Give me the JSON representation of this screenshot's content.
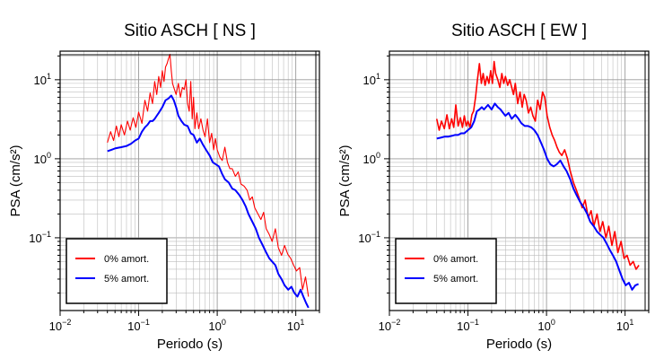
{
  "chart_data": [
    {
      "type": "line",
      "title": "Sitio ASCH [ NS ]",
      "xlabel": "Periodo (s)",
      "ylabel": "PSA (cm/s²)",
      "xscale": "log",
      "yscale": "log",
      "xlim": [
        0.01,
        20
      ],
      "ylim": [
        0.012,
        23
      ],
      "grid": true,
      "legend": "bottom-left",
      "xticks": [
        {
          "base": "10",
          "exp": "−2"
        },
        {
          "base": "10",
          "exp": "−1"
        },
        {
          "base": "10",
          "exp": "0"
        },
        {
          "base": "10",
          "exp": "1"
        }
      ],
      "yticks": [
        {
          "base": "10",
          "exp": "−1"
        },
        {
          "base": "10",
          "exp": "0"
        },
        {
          "base": "10",
          "exp": "1"
        }
      ],
      "series": [
        {
          "name": "0% amort.",
          "color": "#ff0000",
          "x": [
            0.04,
            0.044,
            0.048,
            0.052,
            0.056,
            0.06,
            0.066,
            0.072,
            0.078,
            0.085,
            0.092,
            0.1,
            0.11,
            0.12,
            0.13,
            0.14,
            0.15,
            0.16,
            0.17,
            0.18,
            0.19,
            0.2,
            0.21,
            0.22,
            0.23,
            0.24,
            0.25,
            0.26,
            0.27,
            0.28,
            0.3,
            0.32,
            0.34,
            0.36,
            0.38,
            0.4,
            0.42,
            0.44,
            0.46,
            0.48,
            0.5,
            0.52,
            0.55,
            0.58,
            0.62,
            0.66,
            0.7,
            0.75,
            0.8,
            0.85,
            0.9,
            0.95,
            1.0,
            1.08,
            1.16,
            1.25,
            1.35,
            1.45,
            1.55,
            1.7,
            1.85,
            2.0,
            2.2,
            2.4,
            2.6,
            2.8,
            3.0,
            3.3,
            3.6,
            3.9,
            4.2,
            4.6,
            5.0,
            5.5,
            6.0,
            6.6,
            7.2,
            7.9,
            8.6,
            9.4,
            10.2,
            11.2,
            12.2,
            13.3,
            14.5
          ],
          "y": [
            1.6,
            2.2,
            1.7,
            2.6,
            1.9,
            2.7,
            2.0,
            3.0,
            2.3,
            3.3,
            2.5,
            3.9,
            2.8,
            5.5,
            4.0,
            6.8,
            5.0,
            9.5,
            6.5,
            11.0,
            8.0,
            13.0,
            9.5,
            14.5,
            16.0,
            18.5,
            21.0,
            13.0,
            9.0,
            8.0,
            6.5,
            9.0,
            6.0,
            8.0,
            7.5,
            10.0,
            5.0,
            4.0,
            9.5,
            3.2,
            6.0,
            2.4,
            3.8,
            2.4,
            3.2,
            2.3,
            1.9,
            3.2,
            1.6,
            2.1,
            1.3,
            1.8,
            1.3,
            1.05,
            0.95,
            1.4,
            0.9,
            0.75,
            0.75,
            0.6,
            0.68,
            0.48,
            0.45,
            0.4,
            0.3,
            0.33,
            0.24,
            0.2,
            0.17,
            0.21,
            0.13,
            0.11,
            0.09,
            0.13,
            0.075,
            0.06,
            0.08,
            0.062,
            0.055,
            0.045,
            0.038,
            0.042,
            0.022,
            0.032,
            0.018
          ]
        },
        {
          "name": "5% amort.",
          "color": "#0000ff",
          "x": [
            0.04,
            0.045,
            0.05,
            0.055,
            0.06,
            0.07,
            0.08,
            0.09,
            0.1,
            0.11,
            0.12,
            0.13,
            0.14,
            0.15,
            0.16,
            0.17,
            0.18,
            0.2,
            0.22,
            0.24,
            0.26,
            0.28,
            0.3,
            0.32,
            0.35,
            0.38,
            0.42,
            0.46,
            0.5,
            0.55,
            0.6,
            0.66,
            0.72,
            0.8,
            0.88,
            0.96,
            1.05,
            1.15,
            1.25,
            1.4,
            1.55,
            1.7,
            1.9,
            2.1,
            2.3,
            2.5,
            2.8,
            3.1,
            3.4,
            3.8,
            4.2,
            4.6,
            5.0,
            5.5,
            6.0,
            6.6,
            7.2,
            8.0,
            8.8,
            9.6,
            10.5,
            11.5,
            12.5,
            13.5,
            14.5
          ],
          "y": [
            1.25,
            1.3,
            1.35,
            1.38,
            1.4,
            1.45,
            1.55,
            1.7,
            1.8,
            2.2,
            2.5,
            2.7,
            3.0,
            3.0,
            3.2,
            3.5,
            3.8,
            4.5,
            5.5,
            5.8,
            6.3,
            5.5,
            4.5,
            3.5,
            3.0,
            2.7,
            2.6,
            2.1,
            2.0,
            1.6,
            1.8,
            1.5,
            1.3,
            1.1,
            0.9,
            0.85,
            0.8,
            0.65,
            0.55,
            0.5,
            0.42,
            0.4,
            0.35,
            0.3,
            0.25,
            0.2,
            0.16,
            0.13,
            0.1,
            0.08,
            0.065,
            0.055,
            0.05,
            0.045,
            0.035,
            0.03,
            0.025,
            0.022,
            0.024,
            0.02,
            0.018,
            0.022,
            0.018,
            0.015,
            0.013
          ]
        }
      ]
    },
    {
      "type": "line",
      "title": "Sitio ASCH [ EW ]",
      "xlabel": "Periodo (s)",
      "ylabel": "PSA (cm/s²)",
      "xscale": "log",
      "yscale": "log",
      "xlim": [
        0.01,
        20
      ],
      "ylim": [
        0.012,
        23
      ],
      "grid": true,
      "legend": "bottom-left",
      "xticks": [
        {
          "base": "10",
          "exp": "−2"
        },
        {
          "base": "10",
          "exp": "−1"
        },
        {
          "base": "10",
          "exp": "0"
        },
        {
          "base": "10",
          "exp": "1"
        }
      ],
      "yticks": [
        {
          "base": "10",
          "exp": "−1"
        },
        {
          "base": "10",
          "exp": "0"
        },
        {
          "base": "10",
          "exp": "1"
        }
      ],
      "series": [
        {
          "name": "0% amort.",
          "color": "#ff0000",
          "x": [
            0.04,
            0.043,
            0.046,
            0.05,
            0.054,
            0.058,
            0.062,
            0.066,
            0.07,
            0.075,
            0.08,
            0.085,
            0.09,
            0.095,
            0.1,
            0.106,
            0.112,
            0.118,
            0.125,
            0.132,
            0.14,
            0.148,
            0.156,
            0.165,
            0.175,
            0.185,
            0.195,
            0.205,
            0.215,
            0.225,
            0.24,
            0.255,
            0.27,
            0.285,
            0.3,
            0.32,
            0.34,
            0.36,
            0.38,
            0.4,
            0.43,
            0.46,
            0.49,
            0.52,
            0.55,
            0.59,
            0.63,
            0.67,
            0.72,
            0.77,
            0.83,
            0.89,
            0.95,
            1.02,
            1.1,
            1.18,
            1.27,
            1.36,
            1.46,
            1.57,
            1.7,
            1.85,
            2.0,
            2.2,
            2.4,
            2.6,
            2.85,
            3.1,
            3.4,
            3.7,
            4.0,
            4.4,
            4.8,
            5.2,
            5.7,
            6.2,
            6.8,
            7.4,
            8.1,
            8.9,
            9.7,
            10.6,
            11.6,
            12.7,
            13.8,
            15.0
          ],
          "y": [
            3.2,
            2.3,
            3.0,
            2.4,
            3.6,
            2.4,
            3.2,
            2.5,
            4.8,
            2.6,
            3.3,
            2.5,
            3.5,
            2.6,
            3.0,
            2.5,
            3.6,
            4.0,
            6.0,
            10.0,
            16.0,
            9.0,
            12.0,
            8.5,
            11.0,
            9.0,
            13.0,
            9.0,
            17.0,
            12.0,
            10.0,
            8.0,
            12.0,
            9.0,
            11.0,
            8.5,
            10.0,
            8.0,
            6.5,
            9.0,
            5.0,
            7.0,
            4.5,
            6.5,
            5.5,
            3.8,
            4.5,
            3.5,
            3.0,
            5.5,
            4.2,
            7.0,
            6.0,
            3.5,
            2.5,
            2.0,
            1.7,
            1.4,
            1.2,
            1.1,
            1.3,
            1.0,
            0.7,
            0.5,
            0.4,
            0.32,
            0.24,
            0.3,
            0.18,
            0.22,
            0.14,
            0.2,
            0.12,
            0.16,
            0.1,
            0.14,
            0.08,
            0.12,
            0.065,
            0.09,
            0.055,
            0.06,
            0.045,
            0.05,
            0.04,
            0.045
          ]
        },
        {
          "name": "5% amort.",
          "color": "#0000ff",
          "x": [
            0.04,
            0.045,
            0.05,
            0.056,
            0.062,
            0.068,
            0.075,
            0.082,
            0.09,
            0.1,
            0.11,
            0.12,
            0.13,
            0.14,
            0.15,
            0.16,
            0.18,
            0.2,
            0.22,
            0.24,
            0.26,
            0.28,
            0.3,
            0.33,
            0.36,
            0.4,
            0.44,
            0.48,
            0.53,
            0.58,
            0.64,
            0.7,
            0.77,
            0.85,
            0.93,
            1.02,
            1.12,
            1.23,
            1.35,
            1.5,
            1.65,
            1.8,
            2.0,
            2.2,
            2.4,
            2.7,
            3.0,
            3.3,
            3.6,
            4.0,
            4.4,
            4.8,
            5.3,
            5.8,
            6.4,
            7.0,
            7.7,
            8.5,
            9.3,
            10.2,
            11.2,
            12.3,
            13.5,
            14.8
          ],
          "y": [
            1.8,
            1.85,
            1.9,
            1.9,
            1.95,
            2.0,
            2.0,
            2.1,
            2.1,
            2.3,
            2.5,
            3.0,
            4.0,
            4.2,
            4.5,
            4.2,
            4.8,
            4.2,
            5.0,
            4.5,
            4.2,
            3.8,
            3.5,
            3.8,
            3.2,
            3.6,
            3.2,
            2.8,
            2.6,
            2.6,
            2.5,
            2.3,
            2.0,
            1.6,
            1.3,
            1.0,
            0.85,
            0.8,
            0.85,
            0.95,
            0.8,
            0.7,
            0.55,
            0.42,
            0.35,
            0.28,
            0.24,
            0.2,
            0.16,
            0.14,
            0.12,
            0.11,
            0.1,
            0.085,
            0.07,
            0.06,
            0.05,
            0.038,
            0.03,
            0.025,
            0.027,
            0.022,
            0.025,
            0.026
          ]
        }
      ]
    }
  ]
}
